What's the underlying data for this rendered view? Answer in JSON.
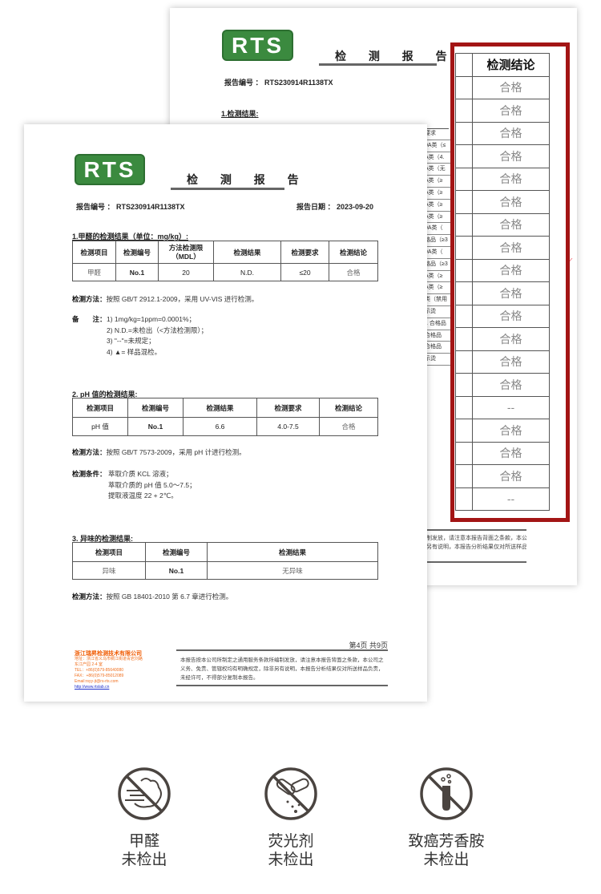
{
  "back_page": {
    "logo": "RTS",
    "title": "检 测 报 告",
    "report_no": "报告编号 ： RTS230914R1138TX",
    "section_title": "1.检测结果:",
    "fragments": [
      "要求",
      "0A类（≤",
      "A类（4.",
      "A类（无",
      "A类（≥",
      "A类（≥",
      "A类（≥",
      "A类（≥",
      "0A类（",
      "格品（≥3",
      "0A类（",
      "格品（≥3",
      "A类（≥",
      "A类（≥",
      "类（禁用",
      "示烫",
      "1 合格品",
      "合格品",
      "合格品",
      "示烫"
    ],
    "footer_text_1": "制发放，请注意本报告背面之条款，本公司",
    "footer_text_2": "另有说明，本报告分析结果仅对所送样品负",
    "highlight": {
      "header": "检测结论",
      "values": [
        "合格",
        "合格",
        "合格",
        "合格",
        "合格",
        "合格",
        "合格",
        "合格",
        "合格",
        "合格",
        "合格",
        "合格",
        "合格",
        "合格",
        "--",
        "合格",
        "合格",
        "合格",
        "--"
      ],
      "border_color": "#a31515"
    }
  },
  "front_page": {
    "logo": "RTS",
    "title": "检 测 报 告",
    "report_no": "报告编号 ： RTS230914R1138TX",
    "report_date": "报告日期 ： 2023-09-20",
    "sec1": {
      "title": "1.甲醛的检测结果（单位：mg/kg）:",
      "headers": [
        "检测项目",
        "检测编号",
        "方法检测限\n（MDL）",
        "检测结果",
        "检测要求",
        "检测结论"
      ],
      "row": [
        "甲醛",
        "No.1",
        "20",
        "N.D.",
        "≤20",
        "合格"
      ],
      "method_label": "检测方法：",
      "method": "按照 GB/T 2912.1-2009，采用 UV-VIS 进行检测。",
      "notes_label": "备　　注：",
      "notes": [
        "1) 1mg/kg=1ppm=0.0001%；",
        "2) N.D.=未检出（<方法检测限）；",
        "3) \"--\"=未规定；",
        "4) ▲= 样品混检。"
      ]
    },
    "sec2": {
      "title": "2. pH 值的检测结果:",
      "headers": [
        "检测项目",
        "检测编号",
        "检测结果",
        "检测要求",
        "检测结论"
      ],
      "row": [
        "pH 值",
        "No.1",
        "6.6",
        "4.0-7.5",
        "合格"
      ],
      "method_label": "检测方法：",
      "method": "按照 GB/T 7573-2009，采用 pH 计进行检测。",
      "cond_label": "检测条件：",
      "conditions": [
        "萃取介质 KCL 溶液；",
        "萃取介质的 pH 值 5.0～7.5；",
        "提取液温度 22 + 2℃。"
      ]
    },
    "sec3": {
      "title": "3. 异味的检测结果:",
      "headers": [
        "检测项目",
        "检测编号",
        "检测结果"
      ],
      "row": [
        "异味",
        "No.1",
        "无异味"
      ],
      "method_label": "检测方法：",
      "method": "按照 GB 18401-2010 第 6.7 章进行检测。"
    },
    "page_no": "第4页 共9页",
    "disclaimer": "本报告按本公司所制定之通用服务条款所编制发放，请注意本报告背面之条款，本公司之义务、免责、管辖权均有明确规定，除非另有说明，本报告分析结果仅对所送样品负责，未经许可，不得部分复制本报告。",
    "company": {
      "name": "浙江瑞昇检测技术有限公司",
      "address": "地址：浙江省义乌市稠江街道青岩刘路",
      "address2": "东江产园 2-4 室",
      "tel": "TEL：+86(0)579-85640080",
      "fax": "FAX：+86(0)579-85012089",
      "email": "Email:rsyy-jt@rs-rts.com",
      "url": "http://www.rtslab.cn"
    }
  },
  "badges": [
    {
      "icon": "no-formaldehyde-icon",
      "line1": "甲醛",
      "line2": "未检出"
    },
    {
      "icon": "no-fluorescent-agent-icon",
      "line1": "荧光剂",
      "line2": "未检出"
    },
    {
      "icon": "no-aromatic-amine-icon",
      "line1": "致癌芳香胺",
      "line2": "未检出"
    }
  ],
  "colors": {
    "logo_green": "#3b8a3f",
    "highlight_red": "#a31515",
    "icon_gray": "#4a4440",
    "company_orange": "#f05a00"
  }
}
